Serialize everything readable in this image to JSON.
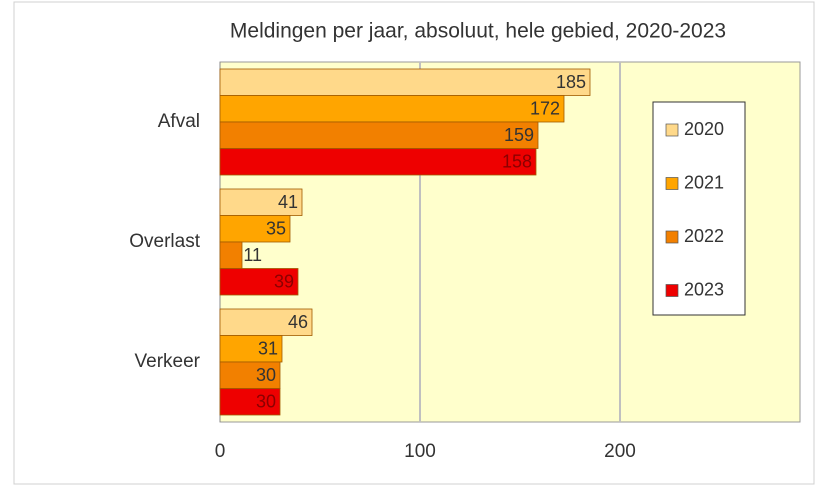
{
  "chart_data": {
    "type": "hbar",
    "title": "Meldingen per jaar, absoluut, hele gebied, 2020-2023",
    "categories": [
      "Afval",
      "Overlast",
      "Verkeer"
    ],
    "series": [
      {
        "name": "2020",
        "color": "#ffd98a",
        "values": [
          185,
          41,
          46
        ]
      },
      {
        "name": "2021",
        "color": "#ffa500",
        "values": [
          172,
          35,
          31
        ]
      },
      {
        "name": "2022",
        "color": "#f28000",
        "values": [
          159,
          11,
          30
        ]
      },
      {
        "name": "2023",
        "color": "#ee0000",
        "values": [
          158,
          39,
          30
        ]
      }
    ],
    "xlim": [
      0,
      290
    ],
    "xticks": [
      0,
      100,
      200
    ],
    "grid": true,
    "legend": "right"
  }
}
